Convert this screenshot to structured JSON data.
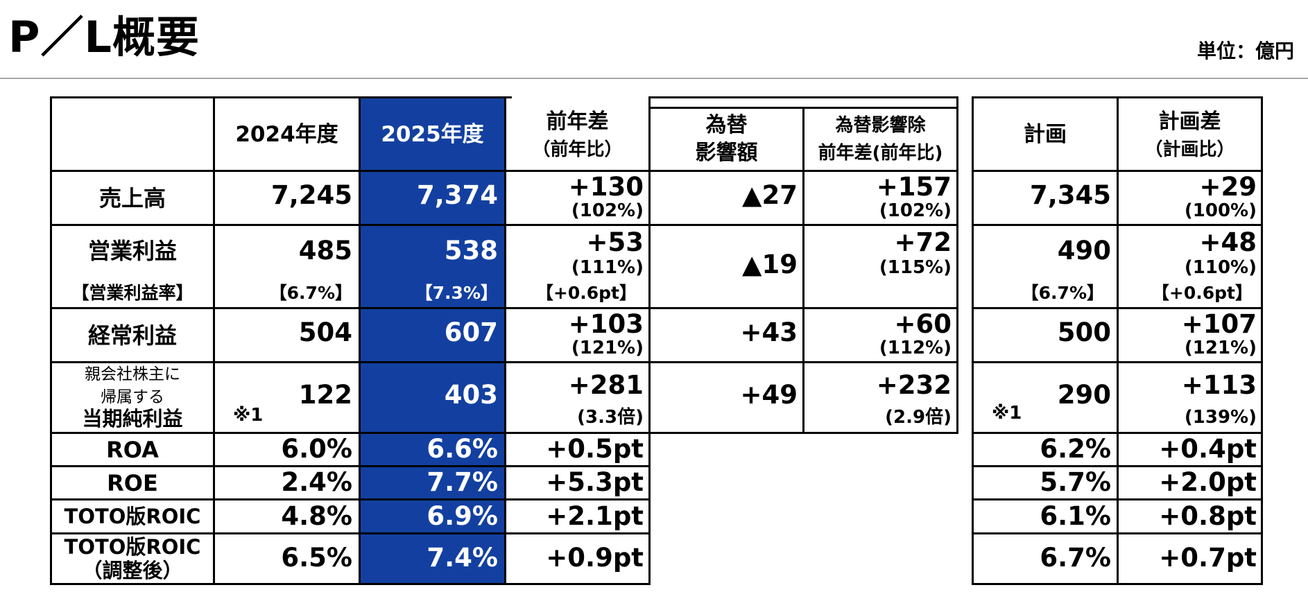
{
  "title": "P／L概要",
  "unit": "単位：億円",
  "columns": {
    "fy2024": "2024年度",
    "fy2025": "2025年度",
    "yoy_main": "前年差",
    "yoy_sub": "（前年比）",
    "fx_line1": "為替",
    "fx_line2": "影響額",
    "exfx_line1": "為替影響除",
    "exfx_line2": "前年差(前年比)",
    "plan": "計画",
    "vsplan_main": "計画差",
    "vsplan_sub": "（計画比）"
  },
  "rows": {
    "sales": {
      "label": "売上高",
      "fy2024": "7,245",
      "fy2025": "7,374",
      "yoy": "+130",
      "yoy_ratio": "(102%)",
      "fx": "▲27",
      "exfx": "+157",
      "exfx_ratio": "(102%)",
      "plan": "7,345",
      "vsplan": "+29",
      "vsplan_ratio": "(100%)"
    },
    "op": {
      "label": "営業利益",
      "sublabel": "【営業利益率】",
      "fy2024": "485",
      "fy2024_rate": "【6.7%】",
      "fy2025": "538",
      "fy2025_rate": "【7.3%】",
      "yoy": "+53",
      "yoy_ratio": "(111%)",
      "yoy_rate": "【+0.6pt】",
      "fx": "▲19",
      "exfx": "+72",
      "exfx_ratio": "(115%)",
      "plan": "490",
      "plan_rate": "【6.7%】",
      "vsplan": "+48",
      "vsplan_ratio": "(110%)",
      "vsplan_rate": "【+0.6pt】"
    },
    "ordinary": {
      "label": "経常利益",
      "fy2024": "504",
      "fy2025": "607",
      "yoy": "+103",
      "yoy_ratio": "(121%)",
      "fx": "+43",
      "exfx": "+60",
      "exfx_ratio": "(112%)",
      "plan": "500",
      "vsplan": "+107",
      "vsplan_ratio": "(121%)"
    },
    "net": {
      "label1": "親会社株主に",
      "label2": "帰属する",
      "label3": "当期純利益",
      "note": "※1",
      "fy2024": "122",
      "fy2025": "403",
      "yoy": "+281",
      "yoy_ratio": "(3.3倍)",
      "fx": "+49",
      "exfx": "+232",
      "exfx_ratio": "(2.9倍)",
      "plan_note": "※1",
      "plan": "290",
      "vsplan": "+113",
      "vsplan_ratio": "(139%)"
    },
    "roa": {
      "label": "ROA",
      "fy2024": "6.0%",
      "fy2025": "6.6%",
      "yoy": "+0.5pt",
      "plan": "6.2%",
      "vsplan": "+0.4pt"
    },
    "roe": {
      "label": "ROE",
      "fy2024": "2.4%",
      "fy2025": "7.7%",
      "yoy": "+5.3pt",
      "plan": "5.7%",
      "vsplan": "+2.0pt"
    },
    "roic": {
      "label": "TOTO版ROIC",
      "fy2024": "4.8%",
      "fy2025": "6.9%",
      "yoy": "+2.1pt",
      "plan": "6.1%",
      "vsplan": "+0.8pt"
    },
    "roic_adj": {
      "label1": "TOTO版ROIC",
      "label2": "（調整後）",
      "fy2024": "6.5%",
      "fy2025": "7.4%",
      "yoy": "+0.9pt",
      "plan": "6.7%",
      "vsplan": "+0.7pt"
    }
  },
  "colors": {
    "highlight": "#1340a0",
    "rule": "#a6a6a6"
  }
}
